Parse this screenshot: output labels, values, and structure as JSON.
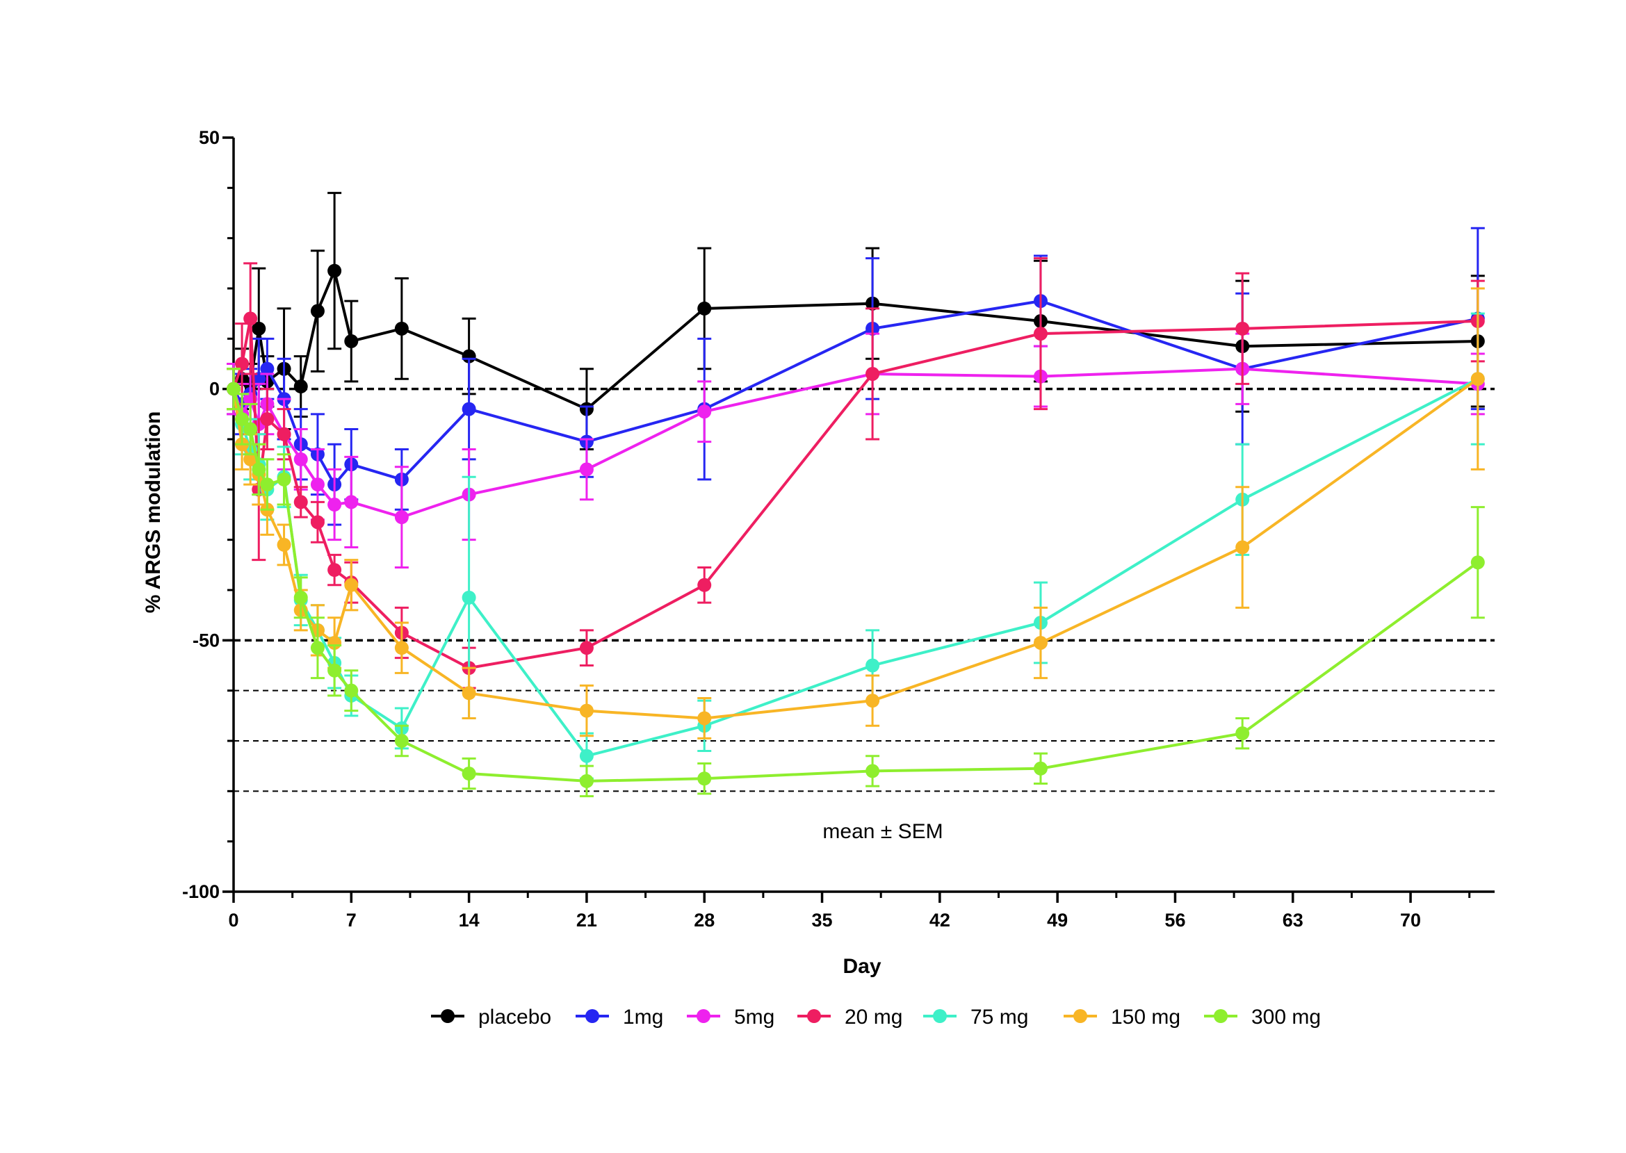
{
  "chart_data": {
    "type": "line",
    "title": "",
    "xlabel": "Day",
    "ylabel": "% ARGS modulation",
    "xlim": [
      0,
      75
    ],
    "ylim": [
      -100,
      50
    ],
    "x_ticks": [
      0,
      7,
      14,
      21,
      28,
      35,
      42,
      49,
      56,
      63,
      70
    ],
    "y_ticks": [
      50,
      0,
      -50,
      -100
    ],
    "y_minor_step": 10,
    "annotation": "mean ± SEM",
    "reference_lines": [
      {
        "y": 0,
        "style": "bold-dashed"
      },
      {
        "y": -50,
        "style": "bold-dashed"
      },
      {
        "y": -60,
        "style": "dashed"
      },
      {
        "y": -70,
        "style": "dashed"
      },
      {
        "y": -80,
        "style": "dashed"
      }
    ],
    "legend_position": "bottom",
    "series": [
      {
        "name": "placebo",
        "color": "#000000",
        "x": [
          0,
          0.5,
          1,
          1.5,
          2,
          3,
          4,
          5,
          6,
          7,
          10,
          14,
          21,
          28,
          38,
          48,
          60,
          74
        ],
        "y": [
          0,
          2,
          1,
          12,
          1.5,
          4,
          0.5,
          15.5,
          23.5,
          9.5,
          12,
          6.5,
          -4,
          16,
          17,
          13.5,
          8.5,
          9.5
        ],
        "err": [
          4,
          6,
          4,
          12,
          5,
          12,
          6,
          12,
          15.5,
          8,
          10,
          7.5,
          8,
          12,
          11,
          12,
          13,
          13
        ]
      },
      {
        "name": "1mg",
        "color": "#2626f2",
        "x": [
          0,
          0.5,
          1,
          1.5,
          2,
          3,
          4,
          5,
          6,
          7,
          10,
          14,
          21,
          28,
          38,
          48,
          60,
          74
        ],
        "y": [
          0,
          -3,
          -1,
          2,
          4,
          -2,
          -11,
          -13,
          -19,
          -15,
          -18,
          -4,
          -10.5,
          -4,
          12,
          17.5,
          4,
          14
        ],
        "err": [
          5,
          6,
          5,
          8,
          6,
          8,
          7,
          8,
          8,
          7,
          6,
          10,
          7,
          14,
          14,
          9,
          15,
          18
        ]
      },
      {
        "name": "5mg",
        "color": "#ee22ee",
        "x": [
          0,
          0.5,
          1,
          1.5,
          2,
          3,
          4,
          5,
          6,
          7,
          10,
          14,
          21,
          28,
          38,
          48,
          60,
          74
        ],
        "y": [
          0,
          -5,
          -2,
          -7,
          -3,
          -9,
          -14,
          -19,
          -23,
          -22.5,
          -25.5,
          -21,
          -16,
          -4.5,
          3,
          2.5,
          4,
          1
        ],
        "err": [
          5,
          6,
          5,
          8,
          6,
          7,
          6,
          7,
          7,
          9,
          10,
          9,
          6,
          6,
          8,
          6,
          7,
          6
        ]
      },
      {
        "name": "20 mg",
        "color": "#ee1e61",
        "x": [
          0,
          0.5,
          1,
          1.5,
          2,
          3,
          4,
          5,
          6,
          7,
          10,
          14,
          21,
          28,
          38,
          48,
          60,
          74
        ],
        "y": [
          0,
          5,
          14,
          -20,
          -6,
          -9,
          -22.5,
          -26.5,
          -36,
          -38.5,
          -48.5,
          -55.5,
          -51.5,
          -39,
          3,
          11,
          12,
          13.5
        ],
        "err": [
          4,
          8,
          11,
          14,
          6,
          5,
          3,
          4,
          3,
          4,
          5,
          4,
          3.5,
          3.5,
          13,
          15,
          11,
          8
        ]
      },
      {
        "name": "75 mg",
        "color": "#3ef0c8",
        "x": [
          0,
          0.5,
          1,
          1.5,
          2,
          3,
          4,
          5,
          6,
          7,
          10,
          14,
          21,
          28,
          38,
          48,
          60,
          74
        ],
        "y": [
          0,
          -7,
          -12,
          -15,
          -20,
          -17.5,
          -42,
          -48,
          -54.5,
          -61,
          -67.5,
          -41.5,
          -73,
          -67,
          -55,
          -46.5,
          -22,
          2
        ],
        "err": [
          4,
          6,
          6,
          6,
          6,
          6,
          5,
          5,
          5,
          4,
          4,
          24,
          4.5,
          5,
          7,
          8,
          11,
          13
        ]
      },
      {
        "name": "150 mg",
        "color": "#f8b525",
        "x": [
          0,
          0.5,
          1,
          1.5,
          2,
          3,
          4,
          5,
          6,
          7,
          10,
          14,
          21,
          28,
          38,
          48,
          60,
          74
        ],
        "y": [
          0,
          -11,
          -14,
          -17,
          -24,
          -31,
          -44,
          -48,
          -50.5,
          -39,
          -51.5,
          -60.5,
          -64,
          -65.5,
          -62,
          -50.5,
          -31.5,
          2
        ],
        "err": [
          4,
          5,
          5,
          6,
          5,
          4,
          4,
          5,
          5,
          5,
          5,
          5,
          5,
          4,
          5,
          7,
          12,
          18
        ]
      },
      {
        "name": "300 mg",
        "color": "#8eee2e",
        "x": [
          0,
          0.5,
          1,
          1.5,
          2,
          3,
          4,
          5,
          6,
          7,
          10,
          14,
          21,
          28,
          38,
          48,
          60,
          74
        ],
        "y": [
          0,
          -6,
          -8,
          -16,
          -19,
          -18,
          -41.5,
          -51.5,
          -56,
          -60,
          -70,
          -76.5,
          -78,
          -77.5,
          -76,
          -75.5,
          -68.5,
          -34.5
        ],
        "err": [
          4,
          5,
          5,
          5,
          5,
          5,
          4,
          6,
          5,
          4,
          3,
          3,
          3,
          3,
          3,
          3,
          3,
          11
        ]
      }
    ]
  }
}
